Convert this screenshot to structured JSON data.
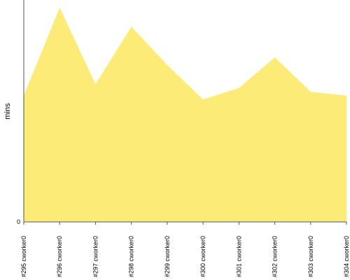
{
  "chart_data": {
    "type": "area",
    "title": "",
    "xlabel": "",
    "ylabel": "mins",
    "ylim": [
      0,
      5.8
    ],
    "grid": false,
    "legend": "none",
    "y_ticks": [
      {
        "value": 0,
        "label": "0"
      }
    ],
    "categories": [
      "#295 cworker0",
      "#296 cworker0",
      "#297 cworker0",
      "#298 cworker0",
      "#299 cworker0",
      "#300 cworker0",
      "#301 cworker0",
      "#302 cworker0",
      "#303 cworker0",
      "#304 cworker0"
    ],
    "series": [
      {
        "values": [
          3.3,
          5.6,
          3.6,
          5.1,
          4.1,
          3.2,
          3.5,
          4.3,
          3.4,
          3.3
        ],
        "fill": "#FCEB77",
        "stroke": "#F2DD5A"
      }
    ]
  },
  "colors": {
    "axis": "#555555",
    "background": "#ffffff"
  }
}
